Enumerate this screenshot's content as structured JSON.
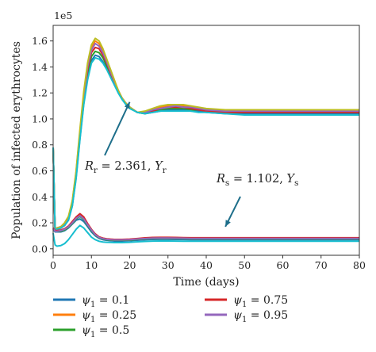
{
  "chart_data": {
    "type": "line",
    "xlabel": "Time (days)",
    "ylabel": "Population of infected erythrocytes",
    "y_multiplier": "1e5",
    "xlim": [
      0,
      80
    ],
    "ylim": [
      -0.05,
      1.72
    ],
    "x_ticks": [
      "0",
      "10",
      "20",
      "30",
      "40",
      "50",
      "60",
      "70",
      "80"
    ],
    "y_ticks": [
      "0.0",
      "0.2",
      "0.4",
      "0.6",
      "0.8",
      "1.0",
      "1.2",
      "1.4",
      "1.6"
    ],
    "grid": false,
    "legend_position": "bottom",
    "annotations": [
      {
        "id": "rr",
        "text_main": "R",
        "text_sub": "r",
        "text_rest": " = 2.361, ",
        "text_var": "Y",
        "text_var_sub": "r",
        "arrow_to_x": 20.0,
        "arrow_to_y": 1.13
      },
      {
        "id": "rs",
        "text_main": "R",
        "text_sub": "s",
        "text_rest": " = 1.102, ",
        "text_var": "Y",
        "text_var_sub": "s",
        "arrow_to_x": 45.0,
        "arrow_to_y": 0.17
      }
    ],
    "group_r": {
      "x": [
        0,
        0.5,
        1,
        2,
        3,
        4,
        5,
        6,
        7,
        8,
        9,
        10,
        11,
        12,
        13,
        14,
        15,
        16,
        17,
        18,
        19,
        20,
        22,
        24,
        26,
        28,
        30,
        32,
        34,
        36,
        38,
        40,
        45,
        50,
        55,
        60,
        65,
        70,
        75,
        80
      ],
      "series": [
        {
          "name": "ψ1 = 0.1",
          "color": "#1f77b4",
          "values": [
            0.78,
            0.15,
            0.15,
            0.16,
            0.18,
            0.22,
            0.33,
            0.55,
            0.85,
            1.12,
            1.32,
            1.45,
            1.49,
            1.48,
            1.44,
            1.39,
            1.33,
            1.27,
            1.21,
            1.16,
            1.12,
            1.09,
            1.05,
            1.04,
            1.05,
            1.06,
            1.07,
            1.07,
            1.07,
            1.06,
            1.06,
            1.05,
            1.04,
            1.04,
            1.04,
            1.04,
            1.04,
            1.04,
            1.04,
            1.04
          ]
        },
        {
          "name": "ψ1 = 0.25",
          "color": "#ff7f0e",
          "values": [
            0.78,
            0.16,
            0.16,
            0.17,
            0.19,
            0.24,
            0.36,
            0.59,
            0.9,
            1.19,
            1.41,
            1.55,
            1.6,
            1.58,
            1.52,
            1.45,
            1.37,
            1.29,
            1.22,
            1.16,
            1.12,
            1.09,
            1.05,
            1.05,
            1.07,
            1.09,
            1.1,
            1.1,
            1.1,
            1.09,
            1.08,
            1.07,
            1.06,
            1.06,
            1.06,
            1.06,
            1.06,
            1.06,
            1.06,
            1.06
          ]
        },
        {
          "name": "ψ1 = 0.5",
          "color": "#2ca02c",
          "values": [
            0.78,
            0.15,
            0.15,
            0.16,
            0.18,
            0.23,
            0.34,
            0.56,
            0.87,
            1.15,
            1.36,
            1.48,
            1.52,
            1.51,
            1.47,
            1.41,
            1.34,
            1.27,
            1.21,
            1.16,
            1.12,
            1.09,
            1.05,
            1.04,
            1.06,
            1.07,
            1.08,
            1.08,
            1.08,
            1.07,
            1.07,
            1.06,
            1.05,
            1.05,
            1.05,
            1.05,
            1.05,
            1.05,
            1.05,
            1.05
          ]
        },
        {
          "name": "ψ1 = 0.75",
          "color": "#d62728",
          "values": [
            0.78,
            0.15,
            0.15,
            0.16,
            0.18,
            0.23,
            0.35,
            0.57,
            0.88,
            1.16,
            1.38,
            1.51,
            1.55,
            1.54,
            1.49,
            1.43,
            1.35,
            1.28,
            1.21,
            1.16,
            1.12,
            1.09,
            1.05,
            1.05,
            1.06,
            1.08,
            1.09,
            1.09,
            1.09,
            1.08,
            1.07,
            1.06,
            1.05,
            1.05,
            1.05,
            1.05,
            1.05,
            1.05,
            1.05,
            1.05
          ]
        },
        {
          "name": "ψ1 = 0.95",
          "color": "#9467bd",
          "values": [
            0.78,
            0.16,
            0.16,
            0.17,
            0.19,
            0.24,
            0.36,
            0.58,
            0.89,
            1.18,
            1.4,
            1.53,
            1.58,
            1.56,
            1.51,
            1.44,
            1.36,
            1.29,
            1.22,
            1.16,
            1.12,
            1.09,
            1.05,
            1.05,
            1.07,
            1.08,
            1.09,
            1.1,
            1.09,
            1.09,
            1.08,
            1.07,
            1.06,
            1.06,
            1.06,
            1.06,
            1.06,
            1.06,
            1.06,
            1.06
          ]
        },
        {
          "name": "",
          "color": "#bcbd22",
          "values": [
            0.78,
            0.16,
            0.16,
            0.17,
            0.2,
            0.25,
            0.37,
            0.6,
            0.92,
            1.21,
            1.43,
            1.57,
            1.62,
            1.6,
            1.54,
            1.46,
            1.38,
            1.3,
            1.22,
            1.16,
            1.12,
            1.09,
            1.05,
            1.06,
            1.08,
            1.1,
            1.11,
            1.11,
            1.11,
            1.1,
            1.09,
            1.08,
            1.07,
            1.07,
            1.07,
            1.07,
            1.07,
            1.07,
            1.07,
            1.07
          ]
        },
        {
          "name": "",
          "color": "#17becf",
          "values": [
            0.78,
            0.15,
            0.15,
            0.16,
            0.18,
            0.22,
            0.33,
            0.54,
            0.84,
            1.11,
            1.3,
            1.43,
            1.47,
            1.46,
            1.43,
            1.38,
            1.32,
            1.26,
            1.2,
            1.15,
            1.11,
            1.08,
            1.05,
            1.04,
            1.05,
            1.06,
            1.06,
            1.06,
            1.06,
            1.06,
            1.05,
            1.05,
            1.04,
            1.03,
            1.03,
            1.03,
            1.03,
            1.03,
            1.03,
            1.03
          ]
        }
      ]
    },
    "group_s": {
      "x": [
        0,
        0.5,
        1,
        2,
        3,
        4,
        5,
        6,
        7,
        8,
        9,
        10,
        11,
        12,
        13,
        14,
        15,
        16,
        18,
        20,
        22,
        24,
        26,
        28,
        30,
        32,
        34,
        36,
        38,
        40,
        45,
        50,
        55,
        60,
        65,
        70,
        75,
        80
      ],
      "series": [
        {
          "name": "ψ1 = 0.1",
          "color": "#1f77b4",
          "values": [
            0.15,
            0.13,
            0.13,
            0.13,
            0.14,
            0.16,
            0.19,
            0.22,
            0.23,
            0.21,
            0.17,
            0.13,
            0.1,
            0.08,
            0.07,
            0.065,
            0.062,
            0.06,
            0.06,
            0.062,
            0.066,
            0.07,
            0.072,
            0.073,
            0.073,
            0.072,
            0.071,
            0.07,
            0.07,
            0.07,
            0.07,
            0.07,
            0.07,
            0.07,
            0.07,
            0.07,
            0.07,
            0.07
          ]
        },
        {
          "name": "ψ1 = 0.25",
          "color": "#ff7f0e",
          "values": [
            0.16,
            0.14,
            0.14,
            0.14,
            0.15,
            0.17,
            0.2,
            0.24,
            0.265,
            0.24,
            0.19,
            0.15,
            0.11,
            0.09,
            0.08,
            0.075,
            0.072,
            0.07,
            0.07,
            0.072,
            0.077,
            0.082,
            0.085,
            0.086,
            0.086,
            0.085,
            0.084,
            0.083,
            0.083,
            0.083,
            0.083,
            0.083,
            0.083,
            0.083,
            0.083,
            0.083,
            0.083,
            0.083
          ]
        },
        {
          "name": "ψ1 = 0.5",
          "color": "#2ca02c",
          "values": [
            0.155,
            0.135,
            0.135,
            0.135,
            0.145,
            0.165,
            0.195,
            0.23,
            0.25,
            0.225,
            0.18,
            0.14,
            0.105,
            0.085,
            0.075,
            0.07,
            0.067,
            0.065,
            0.065,
            0.067,
            0.072,
            0.076,
            0.079,
            0.08,
            0.08,
            0.079,
            0.078,
            0.077,
            0.077,
            0.077,
            0.077,
            0.077,
            0.077,
            0.077,
            0.077,
            0.077,
            0.077,
            0.077
          ]
        },
        {
          "name": "ψ1 = 0.75",
          "color": "#d62728",
          "values": [
            0.16,
            0.14,
            0.14,
            0.145,
            0.155,
            0.175,
            0.21,
            0.245,
            0.27,
            0.245,
            0.195,
            0.15,
            0.115,
            0.092,
            0.082,
            0.077,
            0.074,
            0.072,
            0.072,
            0.074,
            0.079,
            0.084,
            0.087,
            0.088,
            0.088,
            0.087,
            0.086,
            0.085,
            0.085,
            0.085,
            0.085,
            0.085,
            0.085,
            0.085,
            0.085,
            0.085,
            0.085,
            0.085
          ]
        },
        {
          "name": "ψ1 = 0.95",
          "color": "#9467bd",
          "values": [
            0.155,
            0.135,
            0.135,
            0.14,
            0.15,
            0.17,
            0.2,
            0.235,
            0.255,
            0.23,
            0.185,
            0.145,
            0.108,
            0.088,
            0.078,
            0.073,
            0.07,
            0.068,
            0.068,
            0.07,
            0.075,
            0.079,
            0.082,
            0.083,
            0.083,
            0.082,
            0.081,
            0.08,
            0.08,
            0.08,
            0.08,
            0.08,
            0.08,
            0.08,
            0.08,
            0.08,
            0.08,
            0.08
          ]
        },
        {
          "name": "",
          "color": "#17becf",
          "values": [
            0.12,
            0.03,
            0.02,
            0.025,
            0.04,
            0.07,
            0.11,
            0.15,
            0.18,
            0.16,
            0.125,
            0.09,
            0.07,
            0.058,
            0.052,
            0.05,
            0.049,
            0.048,
            0.048,
            0.05,
            0.054,
            0.057,
            0.059,
            0.06,
            0.06,
            0.059,
            0.058,
            0.058,
            0.058,
            0.058,
            0.058,
            0.058,
            0.058,
            0.058,
            0.058,
            0.058,
            0.058,
            0.058
          ]
        }
      ]
    },
    "legend": [
      {
        "label_main": "ψ",
        "label_sub": "1",
        "label_rest": " = 0.1",
        "color": "#1f77b4"
      },
      {
        "label_main": "ψ",
        "label_sub": "1",
        "label_rest": " = 0.25",
        "color": "#ff7f0e"
      },
      {
        "label_main": "ψ",
        "label_sub": "1",
        "label_rest": " = 0.5",
        "color": "#2ca02c"
      },
      {
        "label_main": "ψ",
        "label_sub": "1",
        "label_rest": " = 0.75",
        "color": "#d62728"
      },
      {
        "label_main": "ψ",
        "label_sub": "1",
        "label_rest": " = 0.95",
        "color": "#9467bd"
      }
    ]
  }
}
